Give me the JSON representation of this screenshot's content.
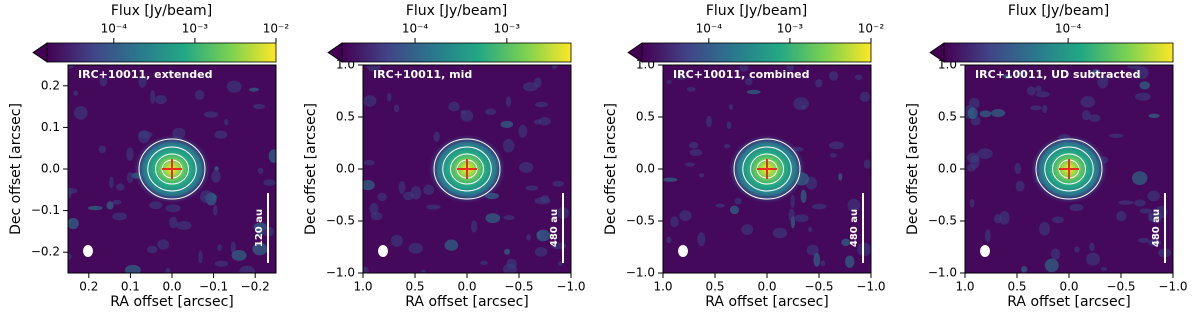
{
  "chart_data": [
    {
      "type": "image",
      "title": "IRC+10011, extended",
      "xlabel": "RA offset [arcsec]",
      "ylabel": "Dec offset [arcsec]",
      "xlim": [
        0.25,
        -0.25
      ],
      "xticks": [
        0.2,
        0.1,
        {
          "value": 0,
          "label": "0.0"
        },
        {
          "value": -0.1,
          "label": "−0.1"
        },
        {
          "value": -0.2,
          "label": "−0.2"
        }
      ],
      "ylim": [
        -0.25,
        0.25
      ],
      "yticks": [
        {
          "value": -0.2,
          "label": "−0.2"
        },
        {
          "value": -0.1,
          "label": "−0.1"
        },
        {
          "value": 0,
          "label": "0.0"
        },
        0.1,
        0.2
      ],
      "colorbar": {
        "label": "Flux [Jy/beam]",
        "log": true,
        "lim": [
          1.5e-05,
          0.01
        ],
        "ticks": [
          {
            "value": 0.0001,
            "label": "10⁻⁴"
          },
          {
            "value": 0.001,
            "label": "10⁻³"
          },
          {
            "value": 0.01,
            "label": "10⁻²"
          }
        ]
      },
      "scale_bar": "120 au"
    },
    {
      "type": "image",
      "title": "IRC+10011, mid",
      "xlabel": "RA offset [arcsec]",
      "ylabel": "Dec offset [arcsec]",
      "xlim": [
        1,
        -1
      ],
      "xticks": [
        {
          "value": 1,
          "label": "1.0"
        },
        0.5,
        {
          "value": 0,
          "label": "0.0"
        },
        {
          "value": -0.5,
          "label": "−0.5"
        },
        {
          "value": -1,
          "label": "−1.0"
        }
      ],
      "ylim": [
        -1,
        1
      ],
      "yticks": [
        {
          "value": -1,
          "label": "−1.0"
        },
        {
          "value": -0.5,
          "label": "−0.5"
        },
        {
          "value": 0,
          "label": "0.0"
        },
        0.5,
        {
          "value": 1,
          "label": "1.0"
        }
      ],
      "colorbar": {
        "label": "Flux [Jy/beam]",
        "log": true,
        "lim": [
          1.6e-05,
          0.005
        ],
        "ticks": [
          {
            "value": 0.0001,
            "label": "10⁻⁴"
          },
          {
            "value": 0.001,
            "label": "10⁻³"
          }
        ]
      },
      "scale_bar": "480 au"
    },
    {
      "type": "image",
      "title": "IRC+10011, combined",
      "xlabel": "RA offset [arcsec]",
      "ylabel": "Dec offset [arcsec]",
      "xlim": [
        1,
        -1
      ],
      "xticks": [
        {
          "value": 1,
          "label": "1.0"
        },
        0.5,
        {
          "value": 0,
          "label": "0.0"
        },
        {
          "value": -0.5,
          "label": "−0.5"
        },
        {
          "value": -1,
          "label": "−1.0"
        }
      ],
      "ylim": [
        -1,
        1
      ],
      "yticks": [
        {
          "value": -1,
          "label": "−1.0"
        },
        {
          "value": -0.5,
          "label": "−0.5"
        },
        {
          "value": 0,
          "label": "0.0"
        },
        0.5,
        {
          "value": 1,
          "label": "1.0"
        }
      ],
      "colorbar": {
        "label": "Flux [Jy/beam]",
        "log": true,
        "lim": [
          1.5e-05,
          0.01
        ],
        "ticks": [
          {
            "value": 0.0001,
            "label": "10⁻⁴"
          },
          {
            "value": 0.001,
            "label": "10⁻³"
          },
          {
            "value": 0.01,
            "label": "10⁻²"
          }
        ]
      },
      "scale_bar": "480 au"
    },
    {
      "type": "image",
      "title": "IRC+10011, UD subtracted",
      "xlabel": "RA offset [arcsec]",
      "ylabel": "Dec offset [arcsec]",
      "xlim": [
        1,
        -1
      ],
      "xticks": [
        {
          "value": 1,
          "label": "1.0"
        },
        0.5,
        {
          "value": 0,
          "label": "0.0"
        },
        {
          "value": -0.5,
          "label": "−0.5"
        },
        {
          "value": -1,
          "label": "−1.0"
        }
      ],
      "ylim": [
        -1,
        1
      ],
      "yticks": [
        {
          "value": -1,
          "label": "−1.0"
        },
        {
          "value": -0.5,
          "label": "−0.5"
        },
        {
          "value": 0,
          "label": "0.0"
        },
        0.5,
        {
          "value": 1,
          "label": "1.0"
        }
      ],
      "colorbar": {
        "label": "Flux [Jy/beam]",
        "log": true,
        "lim": [
          1.2e-05,
          0.0006
        ],
        "ticks": [
          {
            "value": 0.0001,
            "label": "10⁻⁴"
          }
        ]
      },
      "scale_bar": "480 au"
    }
  ]
}
